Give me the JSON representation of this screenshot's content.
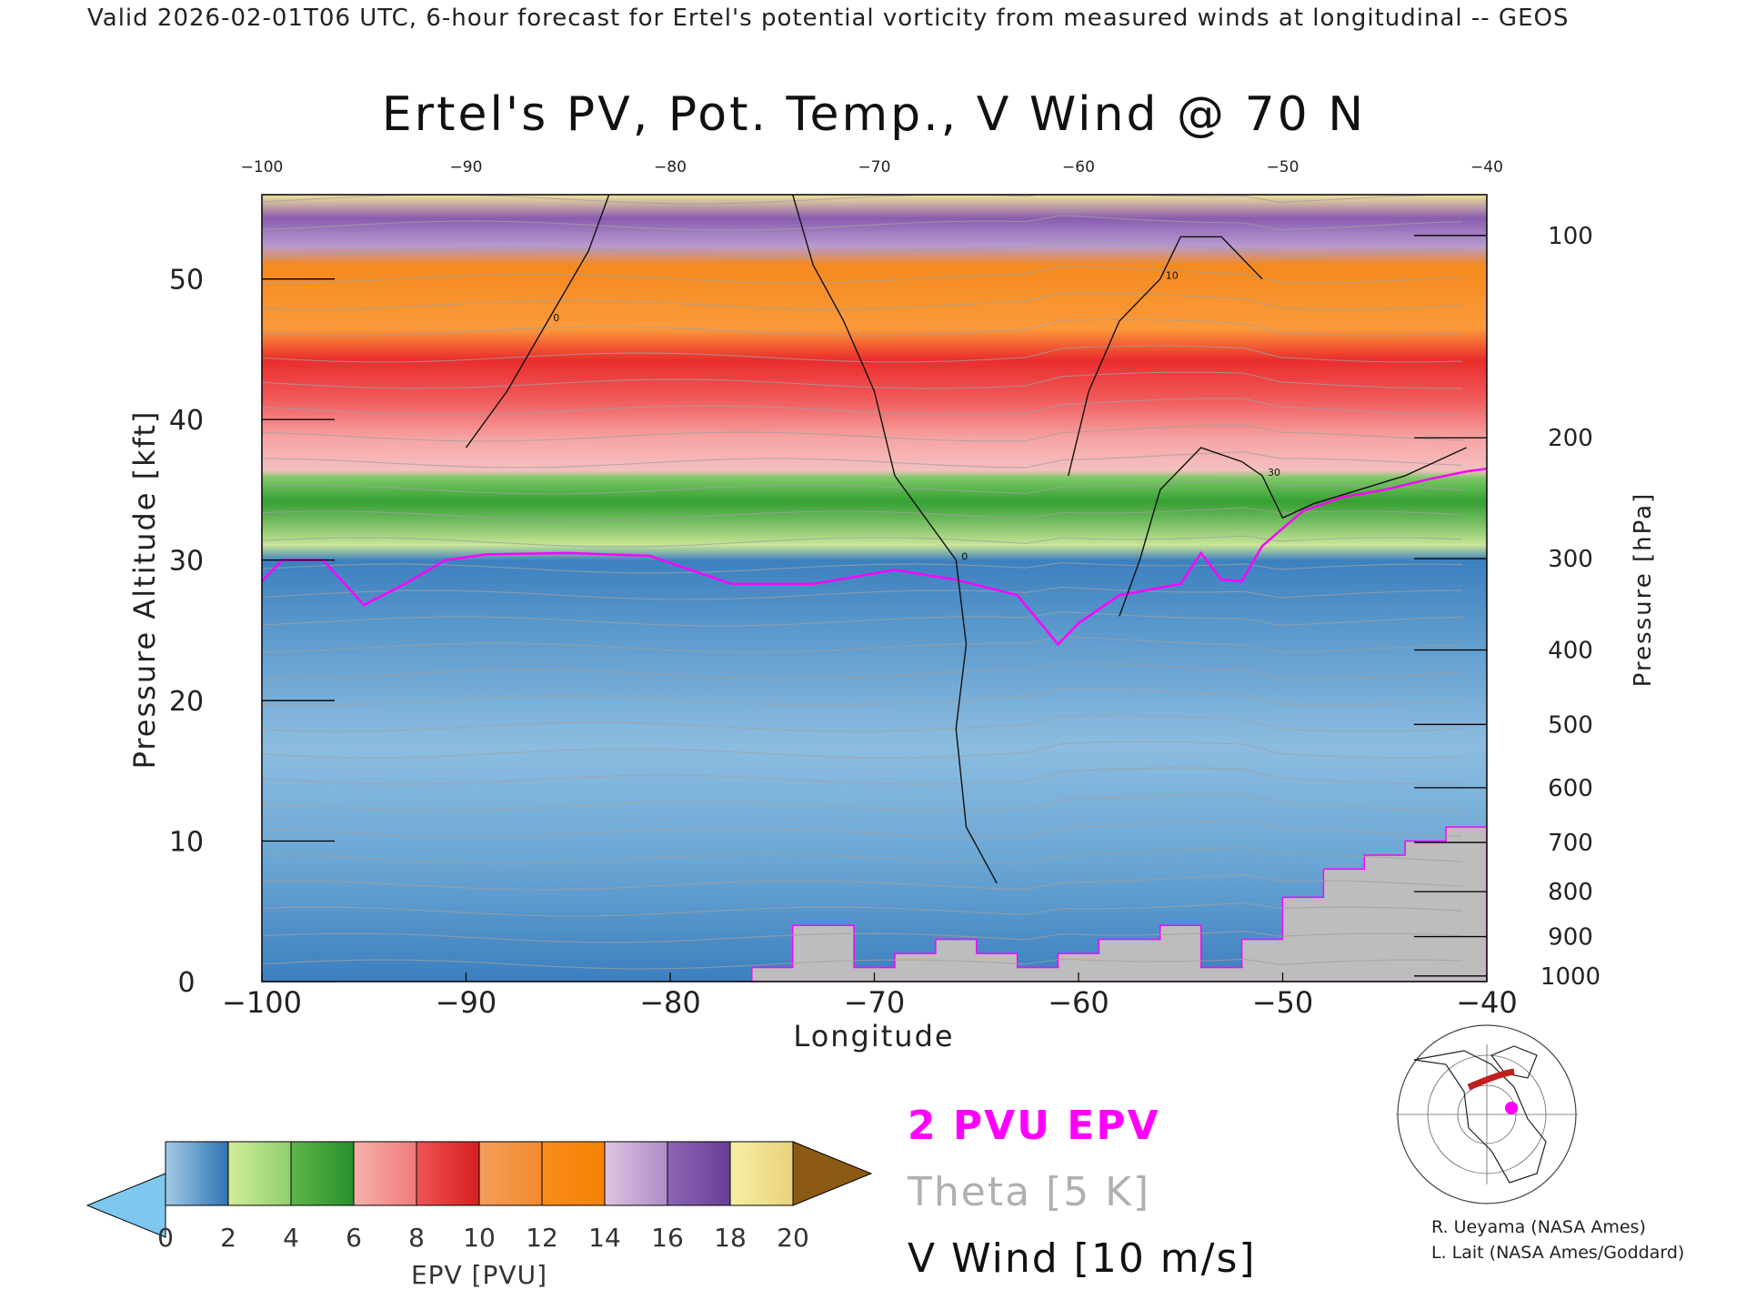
{
  "header": {
    "banner": "Valid 2026-02-01T06 UTC, 6-hour forecast for Ertel's potential vorticity from measured winds at longitudinal -- GEOS"
  },
  "chart_data": {
    "type": "heatmap",
    "title": "Ertel's PV, Pot. Temp., V Wind @ 70 N",
    "xlabel": "Longitude",
    "ylabel": "Pressure Altitude [kft]",
    "y2label": "Pressure [hPa]",
    "xlim": [
      -100,
      -40
    ],
    "ylim": [
      0,
      56
    ],
    "x_ticks": [
      -100,
      -90,
      -80,
      -70,
      -60,
      -50,
      -40
    ],
    "x_tick_labels": [
      "−100",
      "−90",
      "−80",
      "−70",
      "−60",
      "−50",
      "−40"
    ],
    "top_tick_labels": [
      "−100",
      "−90",
      "−80",
      "−70",
      "−60",
      "−50",
      "−40"
    ],
    "y_ticks": [
      0,
      10,
      20,
      30,
      40,
      50
    ],
    "y_tick_labels": [
      "0",
      "10",
      "20",
      "30",
      "40",
      "50"
    ],
    "pressure_ticks": [
      {
        "hPa": 100,
        "kft": 53.1
      },
      {
        "hPa": 200,
        "kft": 38.7
      },
      {
        "hPa": 300,
        "kft": 30.1
      },
      {
        "hPa": 400,
        "kft": 23.6
      },
      {
        "hPa": 500,
        "kft": 18.3
      },
      {
        "hPa": 600,
        "kft": 13.8
      },
      {
        "hPa": 700,
        "kft": 9.9
      },
      {
        "hPa": 800,
        "kft": 6.4
      },
      {
        "hPa": 900,
        "kft": 3.2
      },
      {
        "hPa": 1000,
        "kft": 0.4
      }
    ],
    "tropopause_2pvu": {
      "x": [
        -100,
        -99,
        -97,
        -95,
        -93,
        -91,
        -89,
        -85,
        -81,
        -77,
        -73,
        -69,
        -66,
        -63,
        -61,
        -60,
        -58,
        -55,
        -54,
        -53,
        -52,
        -51,
        -49,
        -47,
        -45,
        -43,
        -41,
        -40
      ],
      "y": [
        28.5,
        30,
        30,
        26.8,
        28.3,
        30,
        30.4,
        30.5,
        30.3,
        28.3,
        28.3,
        29.3,
        28.6,
        27.5,
        24,
        25.5,
        27.5,
        28.3,
        30.5,
        28.6,
        28.5,
        31,
        33.5,
        34.5,
        35,
        35.7,
        36.3,
        36.5
      ]
    },
    "v_wind_contours": [
      {
        "label": "0",
        "x": [
          -83,
          -84,
          -86,
          -88,
          -90
        ],
        "y": [
          56,
          52,
          47,
          42,
          38
        ]
      },
      {
        "label": "0",
        "x": [
          -74,
          -73,
          -71.5,
          -70,
          -69,
          -66,
          -65.5,
          -66,
          -65.5,
          -64
        ],
        "y": [
          56,
          51,
          47,
          42,
          36,
          30,
          24,
          18,
          11,
          7
        ]
      },
      {
        "label": "10",
        "x": [
          -60.5,
          -59.5,
          -58,
          -56,
          -55,
          -53,
          -51
        ],
        "y": [
          36,
          42,
          47,
          50,
          53,
          53,
          50
        ]
      },
      {
        "label": "30",
        "x": [
          -58,
          -57,
          -56,
          -54,
          -52,
          -51,
          -50,
          -48.5,
          -44,
          -41
        ],
        "y": [
          26,
          30,
          35,
          38,
          37,
          36,
          33,
          34,
          36,
          38
        ]
      }
    ],
    "color_scale": {
      "label": "EPV [PVU]",
      "ticks": [
        "0",
        "2",
        "4",
        "6",
        "8",
        "10",
        "12",
        "14",
        "16",
        "18",
        "20"
      ],
      "under_color": "#7ec8f0",
      "over_color": "#8b5a14",
      "segments": [
        [
          "#a3cbe6",
          "#2e74b4"
        ],
        [
          "#d4ec9a",
          "#8fcf6c"
        ],
        [
          "#5fb64a",
          "#28902a"
        ],
        [
          "#f6b0aa",
          "#f07c7c"
        ],
        [
          "#ee5555",
          "#d61e1e"
        ],
        [
          "#f39e5c",
          "#f38a2c"
        ],
        [
          "#fb8c1e",
          "#f48200"
        ],
        [
          "#ddc4e2",
          "#b08cc4"
        ],
        [
          "#8c66b4",
          "#6a3c96"
        ],
        [
          "#f6f0a4",
          "#e8d27c"
        ],
        [
          "#c89c4c",
          "#8b5a14"
        ]
      ]
    },
    "legend": {
      "pvu": "2 PVU EPV",
      "theta": "Theta [5 K]",
      "wind": "V Wind [10 m/s]",
      "colors": {
        "pvu": "#ff00ff",
        "theta": "#b0b0b0",
        "wind": "#111111"
      }
    },
    "credits": [
      "R. Ueyama (NASA Ames)",
      "L. Lait (NASA Ames/Goddard)"
    ]
  }
}
